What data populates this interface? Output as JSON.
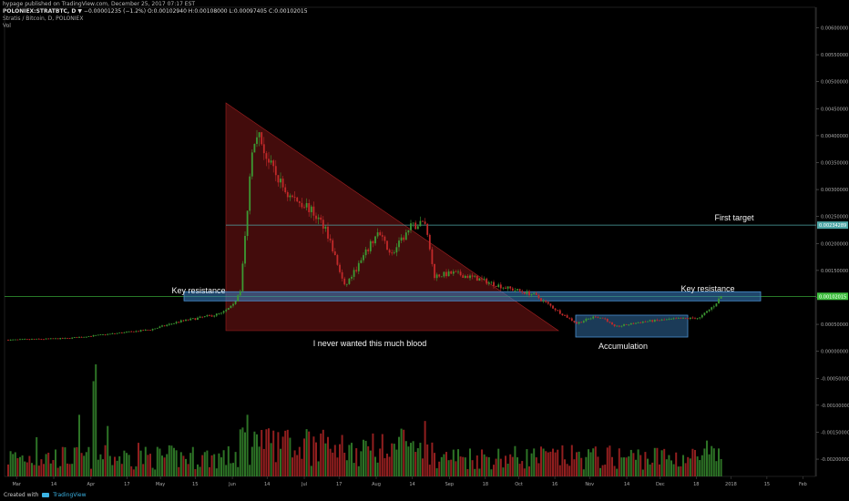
{
  "header": {
    "publisher_line": "hypage published on TradingView.com, December 25, 2017 07:17 EST",
    "symbol": "POLONIEX:STRATBTC, D",
    "quote": "▼ −0.00001235 (−1.2%) O:0.00102940 H:0.00108000 L:0.00097405 C:0.00102015",
    "instrument": "Stratis / Bitcoin, D, POLONIEX",
    "volume_label": "Vol"
  },
  "footer": {
    "created_with": "Created with",
    "brand": "TradingView"
  },
  "colors": {
    "up": "#3c9a33",
    "down": "#c22a2a",
    "box": "#3b82c4",
    "triangle": "#7a1616",
    "hline": "#4ea6a6",
    "kline": "#3fbf3f"
  },
  "chart_data": {
    "type": "candlestick",
    "x_tick_labels": [
      "Mar",
      "14",
      "Apr",
      "17",
      "May",
      "15",
      "Jun",
      "14",
      "Jul",
      "17",
      "Aug",
      "14",
      "Sep",
      "18",
      "Oct",
      "16",
      "Nov",
      "14",
      "Dec",
      "18",
      "2018",
      "15",
      "Feb"
    ],
    "y_tick_labels": [
      "0.00600000",
      "0.00550000",
      "0.00500000",
      "0.00450000",
      "0.00400000",
      "0.00350000",
      "0.00300000",
      "0.00250000",
      "0.00200000",
      "0.00150000",
      "0.00100000",
      "0.00050000",
      "0.00000000",
      "-0.00050000",
      "-0.00100000",
      "-0.00150000",
      "-0.00200000"
    ],
    "y_tick_values": [
      0.006,
      0.0055,
      0.005,
      0.0045,
      0.004,
      0.0035,
      0.003,
      0.0025,
      0.002,
      0.0015,
      0.001,
      0.0005,
      0,
      -0.0005,
      -0.001,
      -0.0015,
      -0.002
    ],
    "ylim": [
      -0.00232,
      0.00638
    ],
    "price_markers": [
      {
        "label": "0.00234289",
        "value": 0.00234,
        "color": "#4ea6a6"
      },
      {
        "label": "0.00102015",
        "value": 0.00102,
        "color": "#3fbf3f"
      }
    ],
    "annotations": [
      {
        "text": "First target"
      },
      {
        "text": "Key resistance"
      },
      {
        "text": "Key resistance"
      },
      {
        "text": "I never wanted this much blood"
      },
      {
        "text": "Accumulation"
      }
    ],
    "series_anchors": [
      {
        "d": 0,
        "v": 0.00021
      },
      {
        "d": 25,
        "v": 0.00024
      },
      {
        "d": 45,
        "v": 0.00033
      },
      {
        "d": 60,
        "v": 0.0004
      },
      {
        "d": 72,
        "v": 0.00055
      },
      {
        "d": 82,
        "v": 0.00063
      },
      {
        "d": 90,
        "v": 0.0007
      },
      {
        "d": 95,
        "v": 0.00085
      },
      {
        "d": 98,
        "v": 0.00115
      },
      {
        "d": 100,
        "v": 0.0021
      },
      {
        "d": 103,
        "v": 0.0038
      },
      {
        "d": 105,
        "v": 0.0041
      },
      {
        "d": 110,
        "v": 0.0035
      },
      {
        "d": 118,
        "v": 0.0029
      },
      {
        "d": 126,
        "v": 0.0027
      },
      {
        "d": 134,
        "v": 0.0023
      },
      {
        "d": 142,
        "v": 0.0012
      },
      {
        "d": 148,
        "v": 0.0016
      },
      {
        "d": 156,
        "v": 0.0022
      },
      {
        "d": 162,
        "v": 0.0018
      },
      {
        "d": 170,
        "v": 0.0023
      },
      {
        "d": 176,
        "v": 0.0024
      },
      {
        "d": 180,
        "v": 0.0014
      },
      {
        "d": 188,
        "v": 0.00145
      },
      {
        "d": 198,
        "v": 0.00135
      },
      {
        "d": 210,
        "v": 0.00118
      },
      {
        "d": 222,
        "v": 0.00105
      },
      {
        "d": 232,
        "v": 0.00075
      },
      {
        "d": 240,
        "v": 0.00052
      },
      {
        "d": 248,
        "v": 0.00065
      },
      {
        "d": 252,
        "v": 0.0006
      },
      {
        "d": 256,
        "v": 0.00045
      },
      {
        "d": 268,
        "v": 0.00055
      },
      {
        "d": 282,
        "v": 0.0006
      },
      {
        "d": 292,
        "v": 0.00062
      },
      {
        "d": 298,
        "v": 0.00085
      },
      {
        "d": 301,
        "v": 0.00102
      }
    ],
    "volume_spikes": [
      {
        "d": 12,
        "h": 0.35
      },
      {
        "d": 30,
        "h": 0.55
      },
      {
        "d": 36,
        "h": 0.85
      },
      {
        "d": 37,
        "h": 1.0
      },
      {
        "d": 42,
        "h": 0.45
      },
      {
        "d": 55,
        "h": 0.3
      },
      {
        "d": 101,
        "h": 0.55
      },
      {
        "d": 104,
        "h": 0.4
      },
      {
        "d": 145,
        "h": 0.3
      },
      {
        "d": 170,
        "h": 0.3
      },
      {
        "d": 238,
        "h": 0.28
      },
      {
        "d": 295,
        "h": 0.32
      }
    ]
  }
}
